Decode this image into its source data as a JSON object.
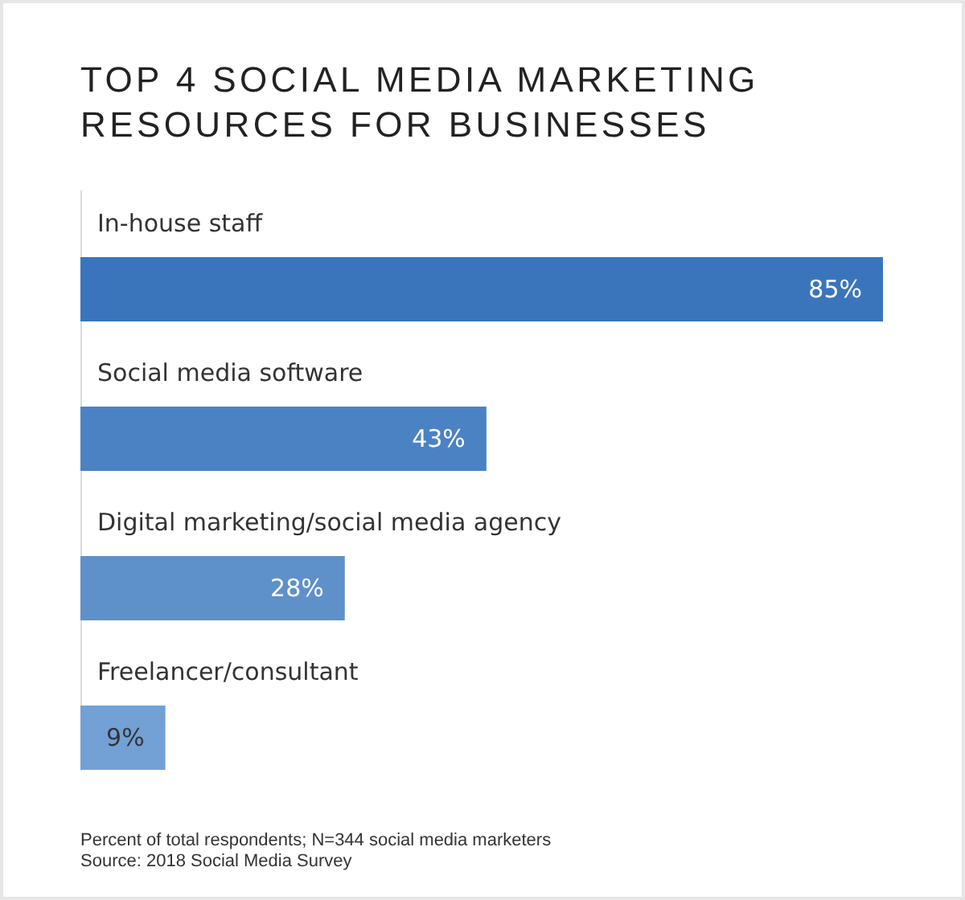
{
  "chart_data": {
    "type": "bar",
    "orientation": "horizontal",
    "title": "TOP 4 SOCIAL MEDIA MARKETING RESOURCES FOR BUSINESSES",
    "categories": [
      "In-house staff",
      "Social media software",
      "Digital marketing/social media agency",
      "Freelancer/consultant"
    ],
    "values": [
      85,
      43,
      28,
      9
    ],
    "colors": [
      "#3a75bc",
      "#4b82c4",
      "#5e90ca",
      "#73a0d5"
    ],
    "value_labels": [
      "85%",
      "43%",
      "28%",
      "9%"
    ],
    "annotations": [
      "Percent of total respondents; N=344 social media marketers",
      "Source: 2018 Social Media Survey"
    ]
  }
}
